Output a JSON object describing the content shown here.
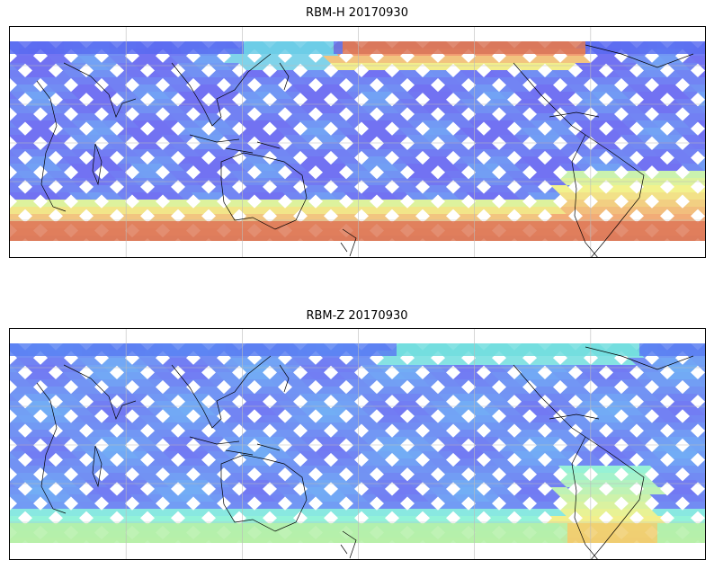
{
  "figure": {
    "panels": [
      {
        "id": "rbm-h",
        "title": "RBM-H 20170930",
        "projection": "equirectangular centered on dateline",
        "grid": true,
        "colormap": "jet, semi-transparent",
        "coverage": "satellite ground-track swaths in a criss-cross pattern",
        "high_value_regions": [
          "southern polar latitudes",
          "northern band north of eastern Australia"
        ]
      },
      {
        "id": "rbm-z",
        "title": "RBM-Z 20170930",
        "projection": "equirectangular centered on dateline",
        "grid": true,
        "colormap": "jet, semi-transparent",
        "coverage": "satellite ground-track swaths in a criss-cross pattern",
        "high_value_regions": [
          "southern band near South America",
          "southern Atlantic"
        ]
      }
    ],
    "colors": {
      "low": "#5a5af0",
      "mid_low": "#5aa8f5",
      "mid": "#7af0d8",
      "mid_high": "#f0f07a",
      "high": "#f08a5a",
      "max": "#b85858",
      "coastline": "#000000",
      "gridline": "#bbbbbb"
    }
  }
}
